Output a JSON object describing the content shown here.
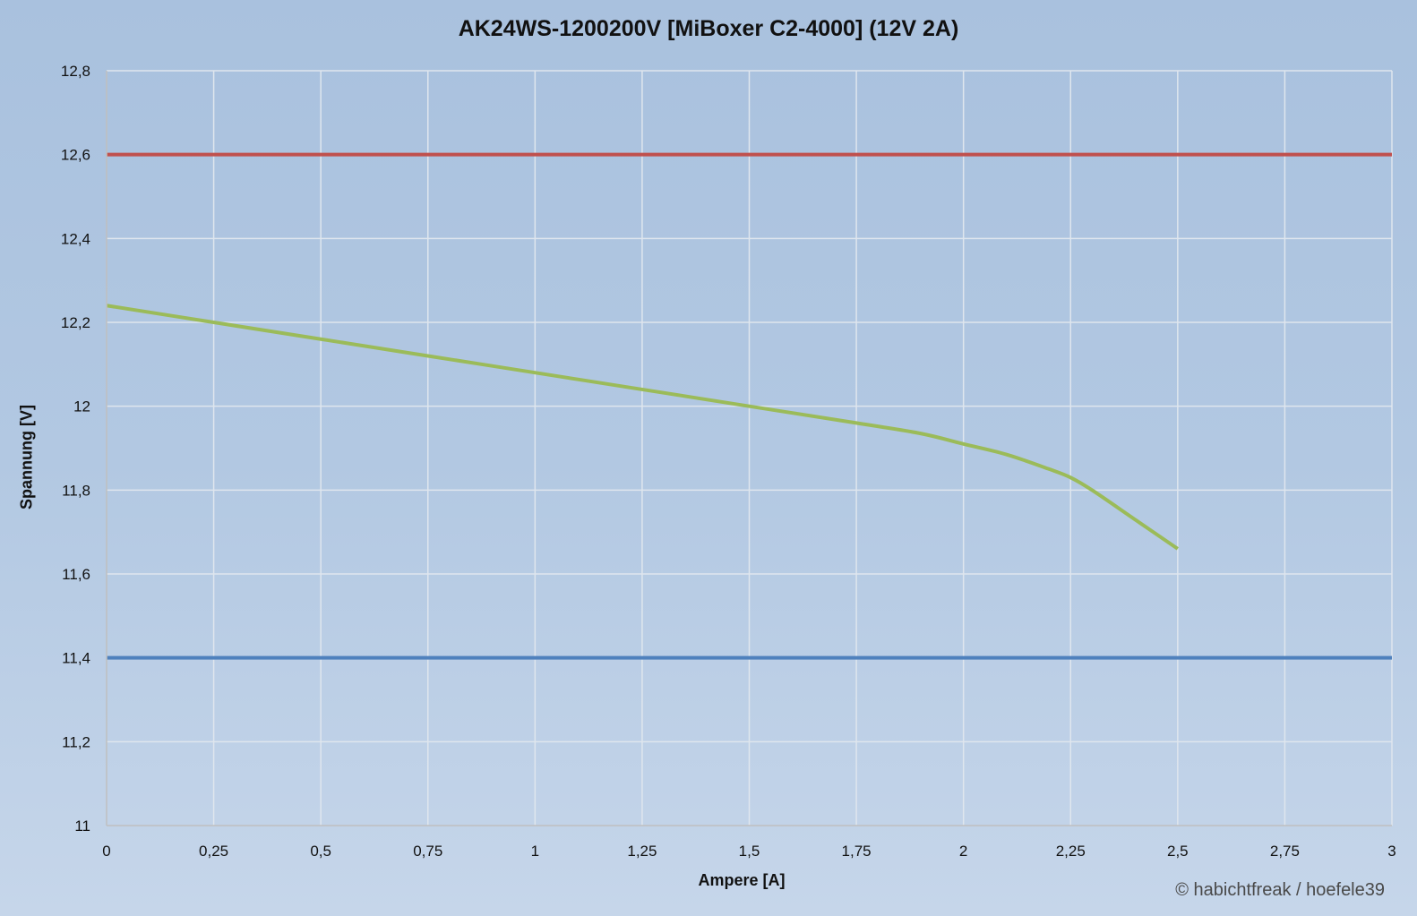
{
  "chart_data": {
    "type": "line",
    "title": "AK24WS-1200200V [MiBoxer C2-4000] (12V 2A)",
    "xlabel": "Ampere [A]",
    "ylabel": "Spannung [V]",
    "xlim": [
      0,
      3
    ],
    "ylim": [
      11,
      12.8
    ],
    "x_ticks": [
      0,
      0.25,
      0.5,
      0.75,
      1,
      1.25,
      1.5,
      1.75,
      2,
      2.25,
      2.5,
      2.75,
      3
    ],
    "x_tick_labels": [
      "0",
      "0,25",
      "0,5",
      "0,75",
      "1",
      "1,25",
      "1,5",
      "1,75",
      "2",
      "2,25",
      "2,5",
      "2,75",
      "3"
    ],
    "y_ticks": [
      11,
      11.2,
      11.4,
      11.6,
      11.8,
      12,
      12.2,
      12.4,
      12.6,
      12.8
    ],
    "y_tick_labels": [
      "11",
      "11,2",
      "11,4",
      "11,6",
      "11,8",
      "12",
      "12,2",
      "12,4",
      "12,6",
      "12,8"
    ],
    "grid": true,
    "series": [
      {
        "color": "#9bbb59",
        "x": [
          0,
          0.25,
          0.5,
          0.75,
          1,
          1.25,
          1.5,
          1.75,
          1.9,
          2,
          2.1,
          2.2,
          2.25,
          2.3,
          2.4,
          2.5
        ],
        "y": [
          12.24,
          12.2,
          12.16,
          12.12,
          12.08,
          12.04,
          12.0,
          11.96,
          11.935,
          11.91,
          11.885,
          11.85,
          11.83,
          11.8,
          11.73,
          11.66
        ]
      },
      {
        "color": "#c0504d",
        "x": [
          0,
          3
        ],
        "y": [
          12.6,
          12.6
        ]
      },
      {
        "color": "#4f81bd",
        "x": [
          0,
          3
        ],
        "y": [
          11.4,
          11.4
        ]
      }
    ]
  },
  "watermark": "© habichtfreak / hoefele39",
  "colors": {
    "grid": "#dfe6ee",
    "axis": "#bfbfbf"
  }
}
